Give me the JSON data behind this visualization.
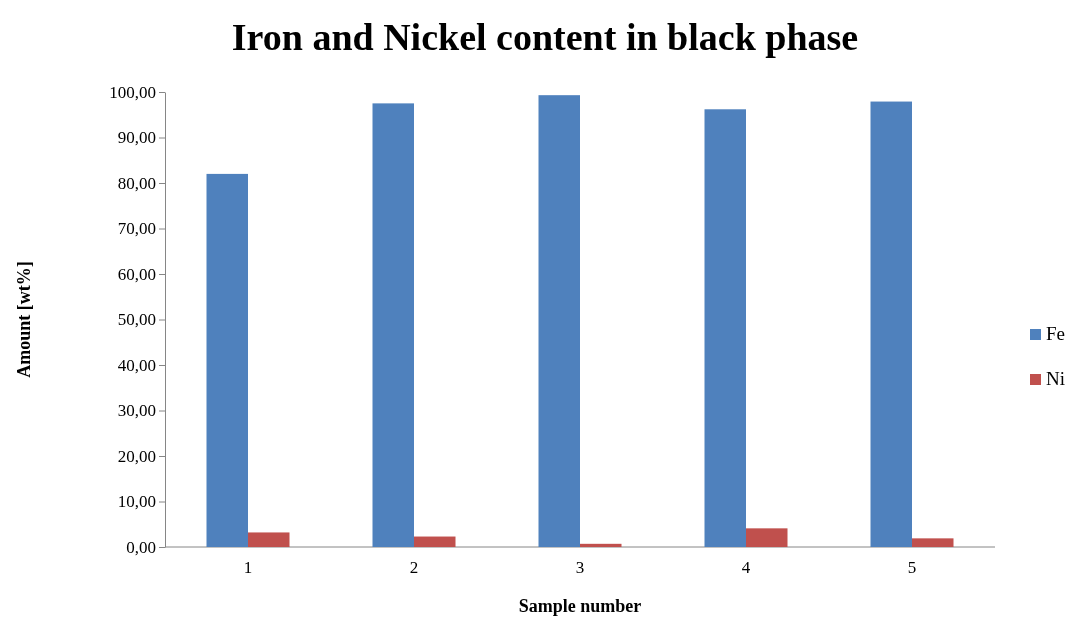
{
  "chart_data": {
    "type": "bar",
    "title": "Iron and Nickel content in black phase",
    "xlabel": "Sample number",
    "ylabel": "Amount  [wt%]",
    "categories": [
      "1",
      "2",
      "3",
      "4",
      "5"
    ],
    "series": [
      {
        "name": "Fe",
        "color": "#4f81bd",
        "values": [
          82.0,
          97.5,
          99.3,
          96.2,
          97.9
        ]
      },
      {
        "name": "Ni",
        "color": "#c0504d",
        "values": [
          3.2,
          2.3,
          0.7,
          4.1,
          1.9
        ]
      }
    ],
    "ylim": [
      0,
      100
    ],
    "yticks": [
      {
        "value": 0,
        "label": "0,00"
      },
      {
        "value": 10,
        "label": "10,00"
      },
      {
        "value": 20,
        "label": "20,00"
      },
      {
        "value": 30,
        "label": "30,00"
      },
      {
        "value": 40,
        "label": "40,00"
      },
      {
        "value": 50,
        "label": "50,00"
      },
      {
        "value": 60,
        "label": "60,00"
      },
      {
        "value": 70,
        "label": "70,00"
      },
      {
        "value": 80,
        "label": "80,00"
      },
      {
        "value": 90,
        "label": "90,00"
      },
      {
        "value": 100,
        "label": "100,00"
      }
    ],
    "grid": false,
    "legend": "right"
  }
}
